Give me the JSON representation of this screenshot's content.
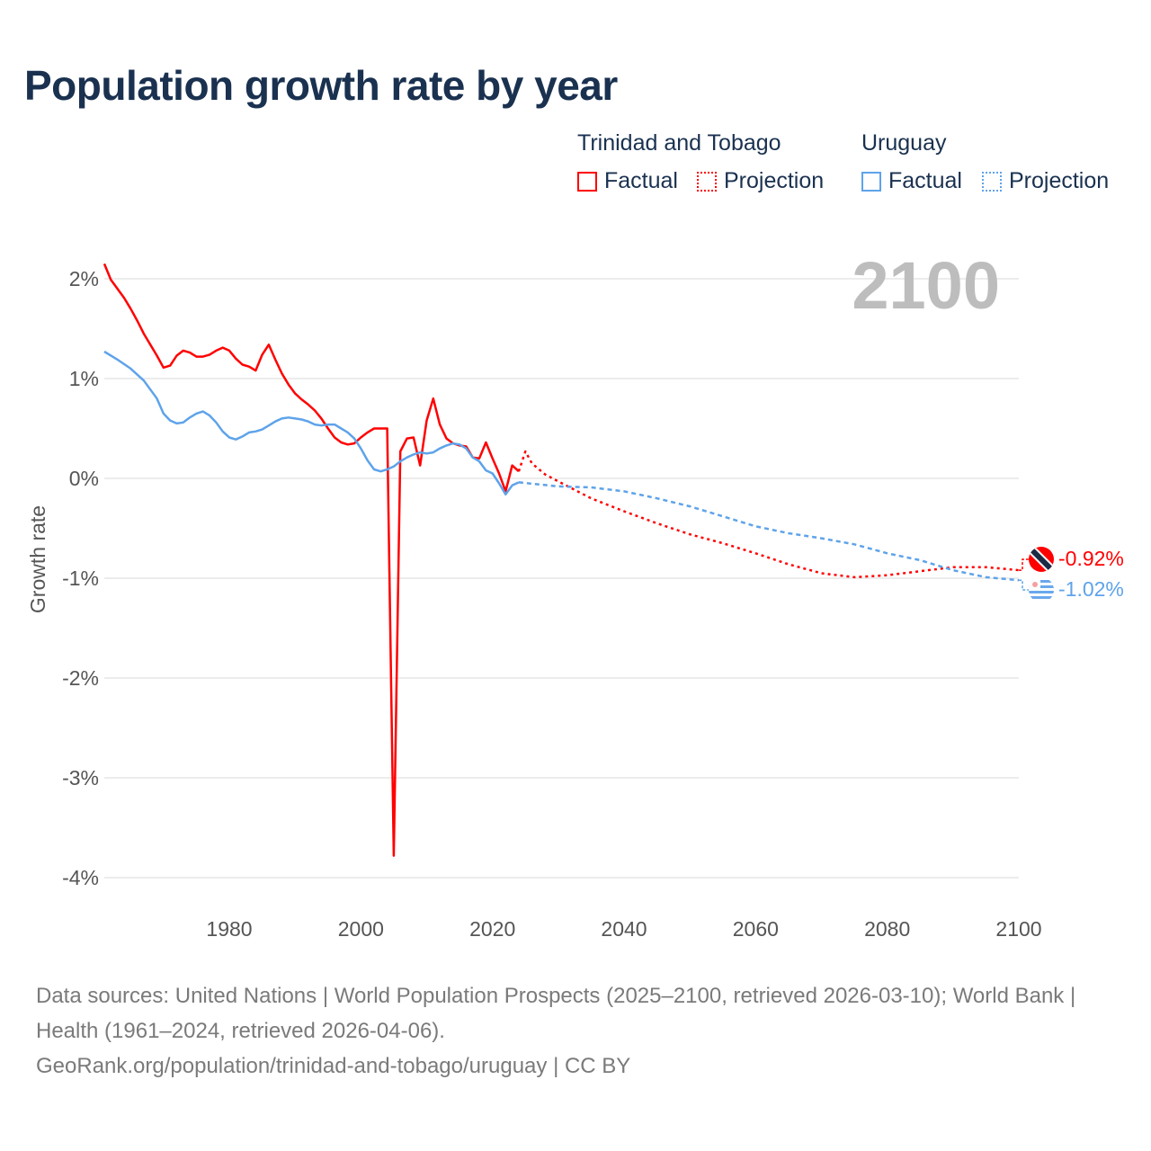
{
  "title": "Population growth rate by year",
  "legend": {
    "groups": [
      {
        "name": "Trinidad and Tobago",
        "factual": "Factual",
        "projection": "Projection",
        "color": "#ff0000"
      },
      {
        "name": "Uruguay",
        "factual": "Factual",
        "projection": "Projection",
        "color": "#5ea3ea"
      }
    ]
  },
  "year_label": "2100",
  "end_labels": {
    "tt": "-0.92%",
    "uy": "-1.02%"
  },
  "sources": "Data sources: United Nations | World Population Prospects (2025–2100, retrieved 2026-03-10); World Bank | Health (1961–2024, retrieved 2026-04-06).",
  "url": "GeoRank.org/population/trinidad-and-tobago/uruguay | CC BY",
  "chart_data": {
    "type": "line",
    "title": "Population growth rate by year",
    "ylabel": "Growth rate",
    "xlabel": "",
    "xlim": [
      1961,
      2100
    ],
    "ylim": [
      -4.3,
      2.2
    ],
    "xticks": [
      "1980",
      "2000",
      "2020",
      "2040",
      "2060",
      "2080",
      "2100"
    ],
    "xtick_values": [
      1980,
      2000,
      2020,
      2040,
      2060,
      2080,
      2100
    ],
    "yticks": [
      "2%",
      "1%",
      "0%",
      "-1%",
      "-2%",
      "-3%",
      "-4%"
    ],
    "ytick_values": [
      2,
      1,
      0,
      -1,
      -2,
      -3,
      -4
    ],
    "grid": true,
    "series": [
      {
        "name": "Trinidad and Tobago – Factual",
        "color": "#ff0000",
        "style": "solid",
        "x": [
          1961,
          1962,
          1963,
          1964,
          1965,
          1966,
          1967,
          1968,
          1969,
          1970,
          1971,
          1972,
          1973,
          1974,
          1975,
          1976,
          1977,
          1978,
          1979,
          1980,
          1981,
          1982,
          1983,
          1984,
          1985,
          1986,
          1987,
          1988,
          1989,
          1990,
          1991,
          1992,
          1993,
          1994,
          1995,
          1996,
          1997,
          1998,
          1999,
          2000,
          2001,
          2002,
          2003,
          2004,
          2005,
          2006,
          2007,
          2008,
          2009,
          2010,
          2011,
          2012,
          2013,
          2014,
          2015,
          2016,
          2017,
          2018,
          2019,
          2020,
          2021,
          2022,
          2023,
          2024
        ],
        "y": [
          2.15,
          1.99,
          1.9,
          1.81,
          1.7,
          1.58,
          1.45,
          1.34,
          1.23,
          1.11,
          1.13,
          1.23,
          1.28,
          1.26,
          1.22,
          1.22,
          1.24,
          1.28,
          1.31,
          1.28,
          1.2,
          1.14,
          1.12,
          1.08,
          1.24,
          1.34,
          1.19,
          1.05,
          0.94,
          0.85,
          0.79,
          0.74,
          0.68,
          0.6,
          0.5,
          0.41,
          0.36,
          0.34,
          0.35,
          0.41,
          0.46,
          0.5,
          0.5,
          0.5,
          -3.78,
          0.27,
          0.4,
          0.41,
          0.13,
          0.58,
          0.8,
          0.54,
          0.4,
          0.35,
          0.33,
          0.32,
          0.21,
          0.2,
          0.36,
          0.2,
          0.05,
          -0.13,
          0.13,
          0.07
        ]
      },
      {
        "name": "Trinidad and Tobago – Projection",
        "color": "#ff0000",
        "style": "dotted",
        "x": [
          2024,
          2025,
          2026,
          2028,
          2030,
          2035,
          2040,
          2045,
          2050,
          2055,
          2060,
          2065,
          2070,
          2075,
          2080,
          2085,
          2090,
          2095,
          2100
        ],
        "y": [
          0.07,
          0.27,
          0.15,
          0.04,
          -0.03,
          -0.2,
          -0.33,
          -0.45,
          -0.56,
          -0.65,
          -0.75,
          -0.86,
          -0.95,
          -0.99,
          -0.97,
          -0.93,
          -0.89,
          -0.89,
          -0.92
        ]
      },
      {
        "name": "Uruguay – Factual",
        "color": "#5ea3ea",
        "style": "solid",
        "x": [
          1961,
          1963,
          1965,
          1967,
          1969,
          1970,
          1971,
          1972,
          1973,
          1974,
          1975,
          1976,
          1977,
          1978,
          1979,
          1980,
          1981,
          1982,
          1983,
          1984,
          1985,
          1986,
          1987,
          1988,
          1989,
          1990,
          1991,
          1992,
          1993,
          1994,
          1995,
          1996,
          1997,
          1998,
          1999,
          2000,
          2001,
          2002,
          2003,
          2004,
          2005,
          2006,
          2007,
          2008,
          2009,
          2010,
          2011,
          2012,
          2013,
          2014,
          2015,
          2016,
          2017,
          2018,
          2019,
          2020,
          2021,
          2022,
          2023,
          2024
        ],
        "y": [
          1.27,
          1.19,
          1.1,
          0.98,
          0.8,
          0.65,
          0.58,
          0.55,
          0.56,
          0.61,
          0.65,
          0.67,
          0.63,
          0.56,
          0.47,
          0.41,
          0.39,
          0.42,
          0.46,
          0.47,
          0.49,
          0.53,
          0.57,
          0.6,
          0.61,
          0.6,
          0.59,
          0.57,
          0.54,
          0.53,
          0.54,
          0.54,
          0.5,
          0.46,
          0.4,
          0.3,
          0.18,
          0.09,
          0.07,
          0.09,
          0.12,
          0.17,
          0.21,
          0.24,
          0.26,
          0.25,
          0.26,
          0.3,
          0.33,
          0.35,
          0.34,
          0.3,
          0.21,
          0.17,
          0.08,
          0.05,
          -0.05,
          -0.16,
          -0.07,
          -0.04
        ]
      },
      {
        "name": "Uruguay – Projection",
        "color": "#5ea3ea",
        "style": "dashed",
        "x": [
          2024,
          2030,
          2035,
          2040,
          2045,
          2050,
          2055,
          2060,
          2065,
          2070,
          2075,
          2080,
          2085,
          2090,
          2095,
          2100
        ],
        "y": [
          -0.04,
          -0.08,
          -0.09,
          -0.13,
          -0.2,
          -0.28,
          -0.38,
          -0.48,
          -0.55,
          -0.6,
          -0.66,
          -0.75,
          -0.82,
          -0.92,
          -0.99,
          -1.02
        ]
      }
    ]
  }
}
